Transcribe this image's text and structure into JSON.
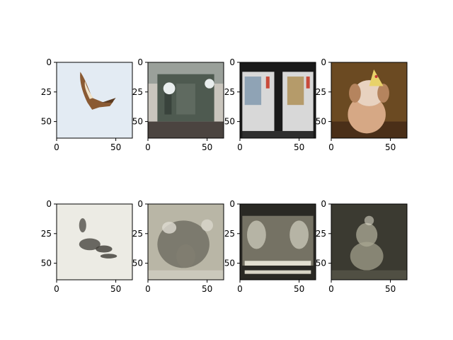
{
  "figure": {
    "rows": 2,
    "cols": 4,
    "background": "#ffffff",
    "axis_color": "#000000"
  },
  "chart_data": [
    {
      "type": "image",
      "row": 0,
      "col": 0,
      "content": "bird of prey (kite) in flight against pale sky",
      "image_extent": [
        0,
        64,
        64,
        0
      ],
      "xticks": [
        0,
        50
      ],
      "yticks": [
        0,
        25,
        50
      ],
      "xtick_labels": [
        "0",
        "50"
      ],
      "ytick_labels": [
        "0",
        "25",
        "50"
      ],
      "colors": {
        "bg": "#e3ebf3",
        "main": "#8a5a33",
        "accent": "#f0e2c8"
      }
    },
    {
      "type": "image",
      "row": 0,
      "col": 1,
      "content": "old army vehicle front with headlights",
      "image_extent": [
        0,
        64,
        64,
        0
      ],
      "xticks": [
        0,
        50
      ],
      "yticks": [
        0,
        25,
        50
      ],
      "xtick_labels": [
        "0",
        "50"
      ],
      "ytick_labels": [
        "0",
        "25",
        "50"
      ],
      "colors": {
        "bg": "#c9c5bd",
        "main": "#4e5a50",
        "accent": "#e9eeee"
      }
    },
    {
      "type": "image",
      "row": 0,
      "col": 2,
      "content": "two vending machines at night",
      "image_extent": [
        0,
        64,
        64,
        0
      ],
      "xticks": [
        0,
        50
      ],
      "yticks": [
        0,
        25,
        50
      ],
      "xtick_labels": [
        "0",
        "50"
      ],
      "ytick_labels": [
        "0",
        "25",
        "50"
      ],
      "colors": {
        "bg": "#1a1a1a",
        "main": "#d8d8d8",
        "accent": "#c84a3a"
      }
    },
    {
      "type": "image",
      "row": 0,
      "col": 3,
      "content": "dog wearing a party hat",
      "image_extent": [
        0,
        64,
        64,
        0
      ],
      "xticks": [
        0,
        50
      ],
      "yticks": [
        0,
        25,
        50
      ],
      "xtick_labels": [
        "0",
        "50"
      ],
      "ytick_labels": [
        "0",
        "25",
        "50"
      ],
      "colors": {
        "bg": "#6b4a22",
        "main": "#d6a885",
        "accent": "#e8d2c0"
      }
    },
    {
      "type": "image",
      "row": 1,
      "col": 0,
      "content": "blurry grayscale reconstruction of bird",
      "image_extent": [
        0,
        64,
        64,
        0
      ],
      "xticks": [
        0,
        50
      ],
      "yticks": [
        0,
        25,
        50
      ],
      "xtick_labels": [
        "0",
        "50"
      ],
      "ytick_labels": [
        "0",
        "25",
        "50"
      ],
      "colors": {
        "bg": "#ecebe4",
        "main": "#3d3b35",
        "accent": "#d6d3c8"
      }
    },
    {
      "type": "image",
      "row": 1,
      "col": 1,
      "content": "blurry grayscale reconstruction of vehicle",
      "image_extent": [
        0,
        64,
        64,
        0
      ],
      "xticks": [
        0,
        50
      ],
      "yticks": [
        0,
        25,
        50
      ],
      "xtick_labels": [
        "0",
        "50"
      ],
      "ytick_labels": [
        "0",
        "25",
        "50"
      ],
      "colors": {
        "bg": "#b9b6a6",
        "main": "#4a493f",
        "accent": "#dedcd2"
      }
    },
    {
      "type": "image",
      "row": 1,
      "col": 2,
      "content": "blurry grayscale reconstruction of vending machines",
      "image_extent": [
        0,
        64,
        64,
        0
      ],
      "xticks": [
        0,
        50
      ],
      "yticks": [
        0,
        25,
        50
      ],
      "xtick_labels": [
        "0",
        "50"
      ],
      "ytick_labels": [
        "0",
        "25",
        "50"
      ],
      "colors": {
        "bg": "#2a2924",
        "main": "#c7c4b5",
        "accent": "#7d7a6b"
      }
    },
    {
      "type": "image",
      "row": 1,
      "col": 3,
      "content": "blurry grayscale reconstruction of dog",
      "image_extent": [
        0,
        64,
        64,
        0
      ],
      "xticks": [
        0,
        50
      ],
      "yticks": [
        0,
        25,
        50
      ],
      "xtick_labels": [
        "0",
        "50"
      ],
      "ytick_labels": [
        "0",
        "25",
        "50"
      ],
      "colors": {
        "bg": "#3b3a31",
        "main": "#a8a592",
        "accent": "#d8d5c6"
      }
    }
  ]
}
